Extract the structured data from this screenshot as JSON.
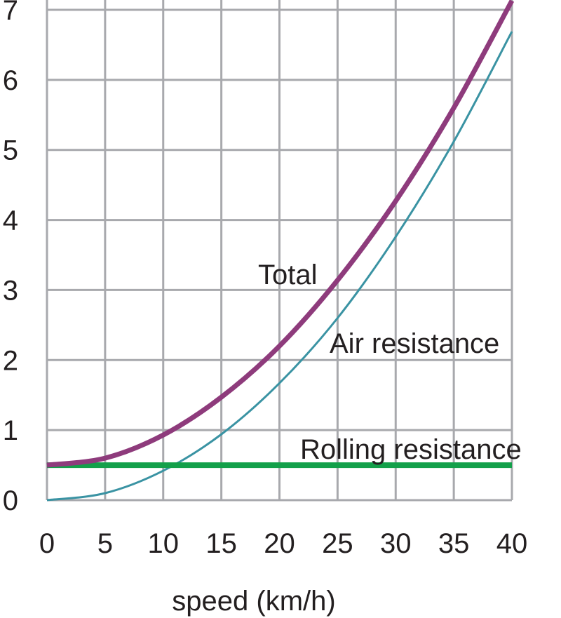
{
  "chart_data": {
    "type": "line",
    "title": "",
    "xlabel": "speed (km/h)",
    "ylabel": "",
    "xlim": [
      0,
      40
    ],
    "ylim": [
      0,
      7
    ],
    "x_ticks": [
      "0",
      "5",
      "10",
      "15",
      "20",
      "25",
      "30",
      "35",
      "40"
    ],
    "y_ticks": [
      "0",
      "1",
      "2",
      "3",
      "4",
      "5",
      "6",
      "7"
    ],
    "grid": true,
    "x": [
      0,
      5,
      10,
      15,
      20,
      25,
      30,
      35,
      40
    ],
    "series": [
      {
        "name": "Total",
        "color": "#8e3b7c",
        "values": [
          0.5,
          0.6,
          0.93,
          1.47,
          2.2,
          3.14,
          4.27,
          5.6,
          7.13
        ]
      },
      {
        "name": "Air resistance",
        "color": "#3a93a3",
        "values": [
          0,
          0.1,
          0.42,
          0.94,
          1.67,
          2.6,
          3.76,
          5.12,
          6.69
        ]
      },
      {
        "name": "Rolling resistance",
        "color": "#13a04a",
        "values": [
          0.5,
          0.5,
          0.5,
          0.5,
          0.5,
          0.5,
          0.5,
          0.5,
          0.5
        ]
      }
    ]
  }
}
